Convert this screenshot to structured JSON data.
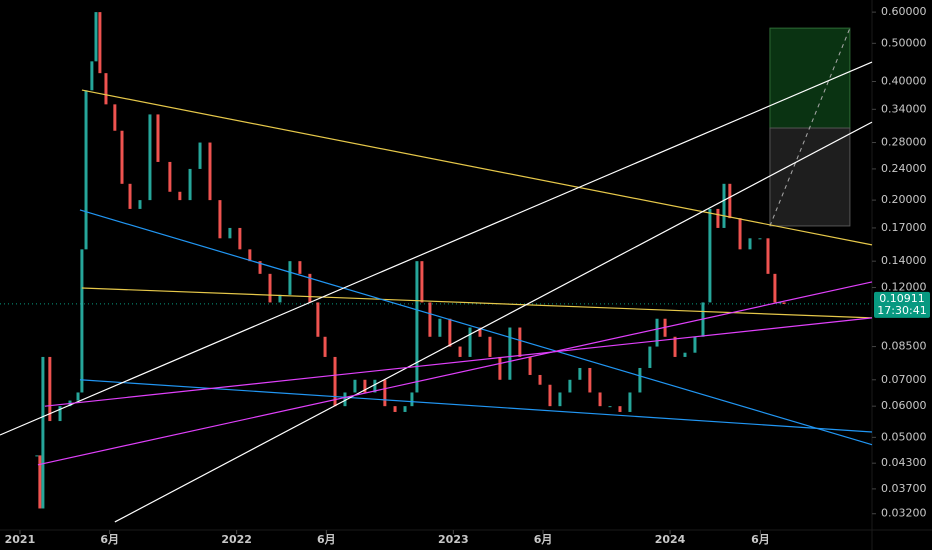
{
  "chart_data": {
    "type": "candlestick",
    "log_scale": true,
    "up_color": "#26a69a",
    "down_color": "#ef5350",
    "x": [
      2021.078,
      2021.092,
      2021.106,
      2021.138,
      2021.185,
      2021.231,
      2021.268,
      2021.286,
      2021.305,
      2021.332,
      2021.351,
      2021.369,
      2021.397,
      2021.438,
      2021.471,
      2021.508,
      2021.554,
      2021.6,
      2021.637,
      2021.692,
      2021.738,
      2021.785,
      2021.831,
      2021.877,
      2021.923,
      2021.969,
      2022.015,
      2022.061,
      2022.108,
      2022.154,
      2022.2,
      2022.246,
      2022.292,
      2022.338,
      2022.375,
      2022.408,
      2022.454,
      2022.5,
      2022.546,
      2022.592,
      2022.638,
      2022.684,
      2022.731,
      2022.777,
      2022.809,
      2022.832,
      2022.855,
      2022.892,
      2022.938,
      2022.984,
      2023.031,
      2023.077,
      2023.123,
      2023.169,
      2023.215,
      2023.261,
      2023.307,
      2023.354,
      2023.4,
      2023.446,
      2023.492,
      2023.538,
      2023.584,
      2023.63,
      2023.677,
      2023.723,
      2023.769,
      2023.815,
      2023.861,
      2023.907,
      2023.94,
      2023.977,
      2024.023,
      2024.069,
      2024.115,
      2024.152,
      2024.184,
      2024.221,
      2024.249,
      2024.276,
      2024.323,
      2024.369,
      2024.415,
      2024.452,
      2024.484,
      2024.507,
      2024.526
    ],
    "values": [
      0.045,
      0.033,
      0.08,
      0.055,
      0.06,
      0.062,
      0.065,
      0.15,
      0.38,
      0.45,
      0.6,
      0.42,
      0.35,
      0.3,
      0.22,
      0.19,
      0.2,
      0.33,
      0.25,
      0.21,
      0.2,
      0.24,
      0.28,
      0.2,
      0.16,
      0.17,
      0.15,
      0.14,
      0.13,
      0.11,
      0.115,
      0.14,
      0.13,
      0.11,
      0.09,
      0.08,
      0.06,
      0.065,
      0.07,
      0.065,
      0.07,
      0.06,
      0.058,
      0.06,
      0.065,
      0.14,
      0.11,
      0.09,
      0.1,
      0.085,
      0.08,
      0.095,
      0.09,
      0.08,
      0.07,
      0.095,
      0.08,
      0.072,
      0.068,
      0.06,
      0.065,
      0.07,
      0.075,
      0.065,
      0.06,
      0.06,
      0.058,
      0.065,
      0.075,
      0.085,
      0.1,
      0.09,
      0.08,
      0.082,
      0.09,
      0.11,
      0.19,
      0.17,
      0.22,
      0.18,
      0.15,
      0.16,
      0.16,
      0.13,
      0.11,
      0.11,
      0.109
    ],
    "xlim": [
      2020.908,
      2024.932
    ],
    "ylim": [
      0.0291,
      0.644
    ],
    "xticks": [
      2021,
      {
        "value": 2021.414,
        "label": "6月"
      },
      2022,
      {
        "value": 2022.414,
        "label": "6月"
      },
      2023,
      {
        "value": 2023.414,
        "label": "6月"
      },
      2024,
      {
        "value": 2024.417,
        "label": "6月"
      }
    ],
    "yticks": [
      {
        "value": 0.6,
        "label": "0.60000"
      },
      {
        "value": 0.5,
        "label": "0.50000"
      },
      {
        "value": 0.4,
        "label": "0.40000"
      },
      {
        "value": 0.34,
        "label": "0.34000"
      },
      {
        "value": 0.28,
        "label": "0.28000"
      },
      {
        "value": 0.24,
        "label": "0.24000"
      },
      {
        "value": 0.2,
        "label": "0.20000"
      },
      {
        "value": 0.17,
        "label": "0.17000"
      },
      {
        "value": 0.14,
        "label": "0.14000"
      },
      {
        "value": 0.12,
        "label": "0.12000"
      },
      {
        "value": 0.085,
        "label": "0.08500"
      },
      {
        "value": 0.07,
        "label": "0.07000"
      },
      {
        "value": 0.06,
        "label": "0.06000"
      },
      {
        "value": 0.05,
        "label": "0.05000"
      },
      {
        "value": 0.043,
        "label": "0.04300"
      },
      {
        "value": 0.037,
        "label": "0.03700"
      },
      {
        "value": 0.032,
        "label": "0.03200"
      }
    ],
    "last_price": 0.10911,
    "countdown": "17:30:41",
    "price_tag_color": "#089981",
    "drawings": [
      {
        "color": "#e6c84a",
        "x": [
          2021.286,
          2024.932
        ],
        "values": [
          0.3805,
          0.154
        ]
      },
      {
        "color": "#e6c84a",
        "x": [
          2021.286,
          2024.932
        ],
        "values": [
          0.1197,
          0.1005
        ]
      },
      {
        "color": "#2196f3",
        "x": [
          2021.277,
          2024.932
        ],
        "values": [
          0.1888,
          0.0479
        ]
      },
      {
        "color": "#2196f3",
        "x": [
          2021.277,
          2024.932
        ],
        "values": [
          0.07,
          0.0516
        ]
      },
      {
        "color": "#ffffff",
        "x": [
          2020.908,
          2024.932
        ],
        "values": [
          0.0507,
          0.448
        ]
      },
      {
        "color": "#ffffff",
        "x": [
          2021.438,
          2024.932
        ],
        "values": [
          0.0305,
          0.3155
        ]
      },
      {
        "color": "#e040fb",
        "x": [
          2021.083,
          2024.932
        ],
        "values": [
          0.0426,
          0.124
        ]
      },
      {
        "color": "#e040fb",
        "x": [
          2021.115,
          2024.932
        ],
        "values": [
          0.06,
          0.1005
        ]
      }
    ],
    "position": {
      "x": [
        2024.461,
        2024.83
      ],
      "levels": [
        0.5464,
        0.3048,
        0.172
      ],
      "target_color": "#0a3312",
      "stop_color": "#1e1e1e"
    }
  }
}
